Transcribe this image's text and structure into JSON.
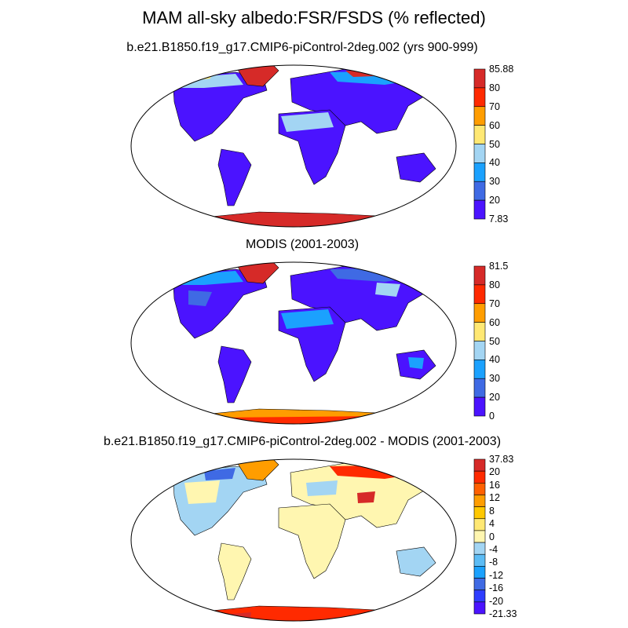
{
  "title": "MAM all-sky albedo:FSR/FSDS (% reflected)",
  "panels": [
    {
      "id": "model",
      "subtitle": "b.e21.B1850.f19_g17.CMIP6-piControl-2deg.002 (yrs 900-999)",
      "colorbar": {
        "labels": [
          "85.88",
          "80",
          "70",
          "60",
          "50",
          "40",
          "30",
          "20",
          "7.83"
        ],
        "colors": [
          "#d62a28",
          "#ff2a00",
          "#ff9d00",
          "#ffe873",
          "#a3d5f3",
          "#1ba1fe",
          "#3f6ae4",
          "#4b13ff"
        ]
      }
    },
    {
      "id": "obs",
      "subtitle": "MODIS (2001-2003)",
      "colorbar": {
        "labels": [
          "81.5",
          "80",
          "70",
          "60",
          "50",
          "40",
          "30",
          "20",
          "0"
        ],
        "colors": [
          "#d62a28",
          "#ff2a00",
          "#ff9d00",
          "#ffe873",
          "#a3d5f3",
          "#1ba1fe",
          "#3f6ae4",
          "#4b13ff"
        ]
      }
    },
    {
      "id": "diff",
      "subtitle": "b.e21.B1850.f19_g17.CMIP6-piControl-2deg.002 - MODIS (2001-2003)",
      "colorbar": {
        "labels": [
          "37.83",
          "20",
          "16",
          "12",
          "8",
          "4",
          "0",
          "-4",
          "-8",
          "-12",
          "-16",
          "-20",
          "-21.33"
        ],
        "colors": [
          "#d62a28",
          "#ff2a00",
          "#ff6000",
          "#ff9d00",
          "#ffc800",
          "#ffe873",
          "#fff6b0",
          "#a3d5f3",
          "#5cbcf5",
          "#1ba1fe",
          "#3f6ae4",
          "#2e3dff",
          "#4b13ff"
        ]
      }
    }
  ]
}
